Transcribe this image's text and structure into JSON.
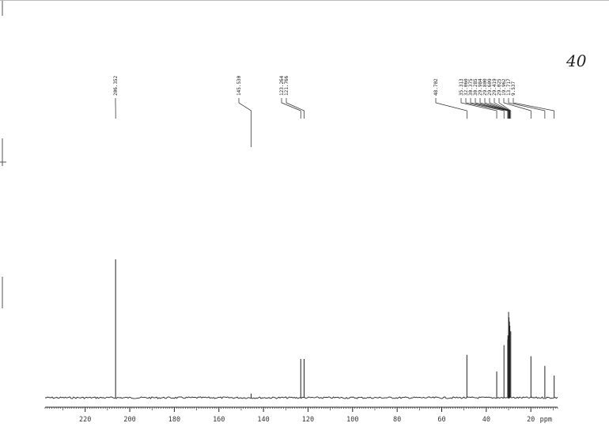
{
  "chart_data": {
    "type": "line",
    "x_unit": "ppm",
    "x_range": [
      238,
      8
    ],
    "x_ticks": [
      220,
      200,
      180,
      160,
      140,
      120,
      100,
      80,
      60,
      40,
      20
    ],
    "peak_labels": [
      "206.352",
      "145.530",
      "123.264",
      "121.766",
      "48.702",
      "35.313",
      "32.060",
      "30.375",
      "30.285",
      "29.984",
      "29.800",
      "29.609",
      "29.419",
      "29.025",
      "19.962",
      "13.717",
      "9.537"
    ],
    "series": [
      {
        "peaks": [
          {
            "ppm": 206.352,
            "intensity": 1.0
          },
          {
            "ppm": 145.53,
            "intensity": 0.03
          },
          {
            "ppm": 123.264,
            "intensity": 0.28
          },
          {
            "ppm": 121.766,
            "intensity": 0.28
          },
          {
            "ppm": 48.702,
            "intensity": 0.31
          },
          {
            "ppm": 35.313,
            "intensity": 0.19
          },
          {
            "ppm": 32.06,
            "intensity": 0.38
          },
          {
            "ppm": 30.375,
            "intensity": 0.42
          },
          {
            "ppm": 30.285,
            "intensity": 0.45
          },
          {
            "ppm": 29.984,
            "intensity": 0.62
          },
          {
            "ppm": 29.8,
            "intensity": 0.58
          },
          {
            "ppm": 29.609,
            "intensity": 0.55
          },
          {
            "ppm": 29.419,
            "intensity": 0.52
          },
          {
            "ppm": 29.025,
            "intensity": 0.48
          },
          {
            "ppm": 19.962,
            "intensity": 0.3
          },
          {
            "ppm": 13.717,
            "intensity": 0.23
          },
          {
            "ppm": 9.537,
            "intensity": 0.16
          }
        ]
      }
    ]
  },
  "annotation": {
    "note": "40"
  },
  "colors": {
    "ink": "#222222",
    "paper": "#ffffff"
  }
}
